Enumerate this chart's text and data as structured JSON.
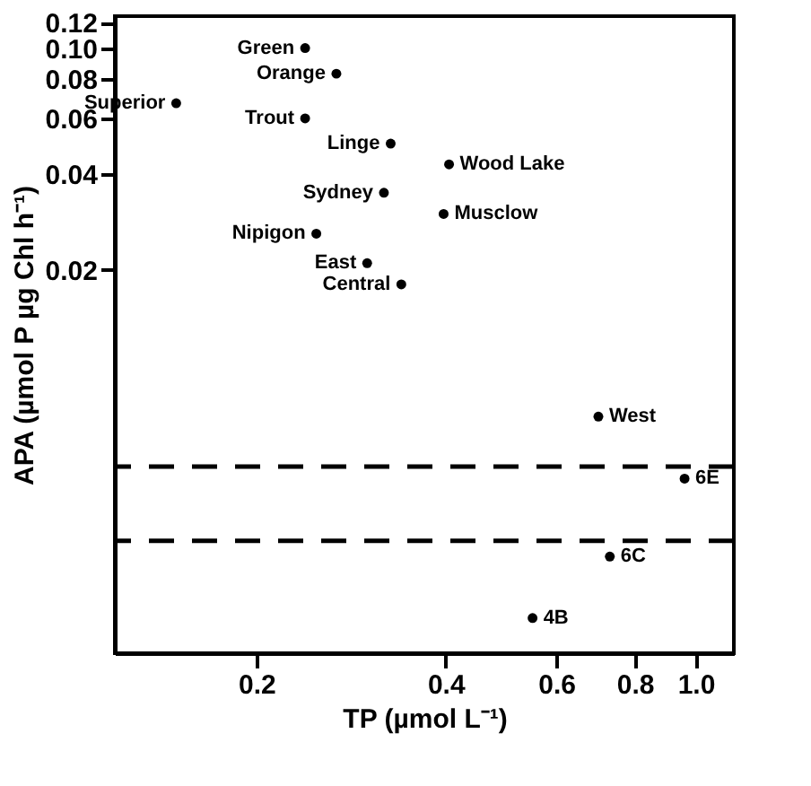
{
  "chart_data": {
    "type": "scatter",
    "xlabel": "TP (µmol L⁻¹)",
    "ylabel": "APA (µmol P µg Chl h⁻¹)",
    "log": "xy",
    "marker": "circle",
    "grid": false,
    "xlim": [
      0.119,
      1.15
    ],
    "ylim": [
      0.00124,
      0.126
    ],
    "xticks": [
      0.2,
      0.4,
      0.6,
      0.8,
      {
        "value": 1.0,
        "label": "1.0"
      }
    ],
    "yticks": [
      0.02,
      0.04,
      0.06,
      0.08,
      {
        "value": 0.1,
        "label": "0.10"
      },
      0.12
    ],
    "series": [
      {
        "color": "#000000",
        "x": [
          0.239,
          0.268,
          0.149,
          0.239,
          0.327,
          0.405,
          0.319,
          0.397,
          0.249,
          0.3,
          0.34,
          0.7,
          0.96,
          0.73,
          0.55
        ],
        "values": [
          0.1,
          0.083,
          0.067,
          0.06,
          0.05,
          0.043,
          0.035,
          0.03,
          0.026,
          0.021,
          0.018,
          0.0069,
          0.0044,
          0.0025,
          0.0016
        ]
      }
    ],
    "annotations": [
      {
        "text": "Green",
        "x": 0.239,
        "y": 0.1
      },
      {
        "text": "Orange",
        "x": 0.268,
        "y": 0.083
      },
      {
        "text": "Superior",
        "x": 0.149,
        "y": 0.067
      },
      {
        "text": "Trout",
        "x": 0.239,
        "y": 0.06
      },
      {
        "text": "Linge",
        "x": 0.327,
        "y": 0.05
      },
      {
        "text": "Wood Lake",
        "x": 0.405,
        "y": 0.043
      },
      {
        "text": "Sydney",
        "x": 0.319,
        "y": 0.035
      },
      {
        "text": "Musclow",
        "x": 0.397,
        "y": 0.03
      },
      {
        "text": "Nipigon",
        "x": 0.249,
        "y": 0.026
      },
      {
        "text": "East",
        "x": 0.3,
        "y": 0.021
      },
      {
        "text": "Central",
        "x": 0.34,
        "y": 0.018
      },
      {
        "text": "West",
        "x": 0.7,
        "y": 0.0069
      },
      {
        "text": "6E",
        "x": 0.96,
        "y": 0.0044
      },
      {
        "text": "6C",
        "x": 0.73,
        "y": 0.0025
      },
      {
        "text": "4B",
        "x": 0.55,
        "y": 0.0016
      }
    ],
    "ref_lines": [
      {
        "axis": "y",
        "value": 0.0048,
        "line_style": "dashed",
        "color": "#000000"
      },
      {
        "axis": "y",
        "value": 0.0028,
        "line_style": "dashed",
        "color": "#000000"
      }
    ]
  }
}
